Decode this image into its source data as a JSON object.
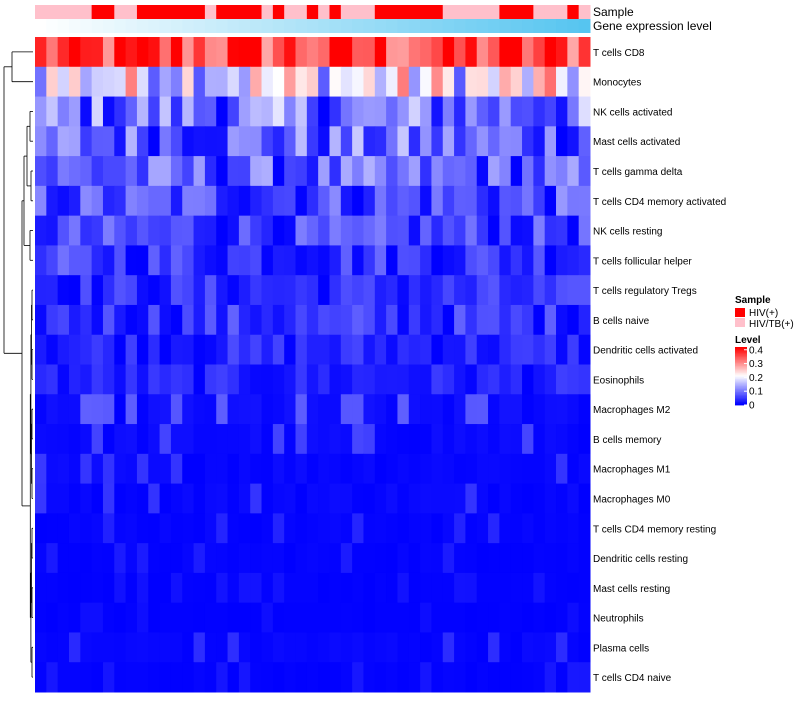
{
  "chart_data": {
    "type": "heatmap",
    "title": "",
    "annotation_tracks": [
      {
        "label": "Sample"
      },
      {
        "label": "Gene expression level"
      }
    ],
    "sample_groups": [
      "HIV/TB(+)",
      "HIV/TB(+)",
      "HIV/TB(+)",
      "HIV/TB(+)",
      "HIV/TB(+)",
      "HIV(+)",
      "HIV(+)",
      "HIV/TB(+)",
      "HIV/TB(+)",
      "HIV(+)",
      "HIV(+)",
      "HIV(+)",
      "HIV(+)",
      "HIV(+)",
      "HIV(+)",
      "HIV/TB(+)",
      "HIV(+)",
      "HIV(+)",
      "HIV(+)",
      "HIV(+)",
      "HIV/TB(+)",
      "HIV(+)",
      "HIV/TB(+)",
      "HIV/TB(+)",
      "HIV(+)",
      "HIV/TB(+)",
      "HIV(+)",
      "HIV/TB(+)",
      "HIV/TB(+)",
      "HIV/TB(+)",
      "HIV(+)",
      "HIV(+)",
      "HIV(+)",
      "HIV(+)",
      "HIV(+)",
      "HIV(+)",
      "HIV/TB(+)",
      "HIV/TB(+)",
      "HIV/TB(+)",
      "HIV/TB(+)",
      "HIV/TB(+)",
      "HIV(+)",
      "HIV(+)",
      "HIV(+)",
      "HIV/TB(+)",
      "HIV/TB(+)",
      "HIV/TB(+)",
      "HIV(+)",
      "HIV/TB(+)"
    ],
    "rows": [
      "T cells CD8",
      "Monocytes",
      "NK cells activated",
      "Mast cells activated",
      "T cells gamma delta",
      "T cells CD4 memory activated",
      "NK cells resting",
      "T cells follicular helper",
      "T cells regulatory  Tregs",
      "B cells naive",
      "Dendritic cells activated",
      "Eosinophils",
      "Macrophages M2",
      "B cells memory",
      "Macrophages M1",
      "Macrophages M0",
      "T cells CD4 memory resting",
      "Dendritic cells resting",
      "Mast cells resting",
      "Neutrophils",
      "Plasma cells",
      "T cells CD4 naive"
    ],
    "row_means": [
      0.36,
      0.2,
      0.09,
      0.08,
      0.07,
      0.06,
      0.05,
      0.045,
      0.035,
      0.04,
      0.03,
      0.025,
      0.02,
      0.015,
      0.012,
      0.012,
      0.008,
      0.006,
      0.004,
      0.003,
      0.01,
      0.005
    ],
    "legend": {
      "sample": {
        "title": "Sample",
        "entries": [
          {
            "label": "HIV(+)",
            "color": "#ff0000"
          },
          {
            "label": "HIV/TB(+)",
            "color": "#ffc0cb"
          }
        ]
      },
      "level": {
        "title": "Level",
        "ticks": [
          {
            "label": "0.4",
            "value": 0.4
          },
          {
            "label": "0.3",
            "value": 0.3
          },
          {
            "label": "0.2",
            "value": 0.2
          },
          {
            "label": "0.1",
            "value": 0.1
          },
          {
            "label": "0",
            "value": 0.0
          }
        ],
        "range": [
          0,
          0.42
        ]
      }
    },
    "colors": {
      "low": "#0000ff",
      "mid": "#ffffff",
      "high": "#ff0000",
      "expression_start": "#ffffff",
      "expression_end": "#56c5f0"
    }
  }
}
